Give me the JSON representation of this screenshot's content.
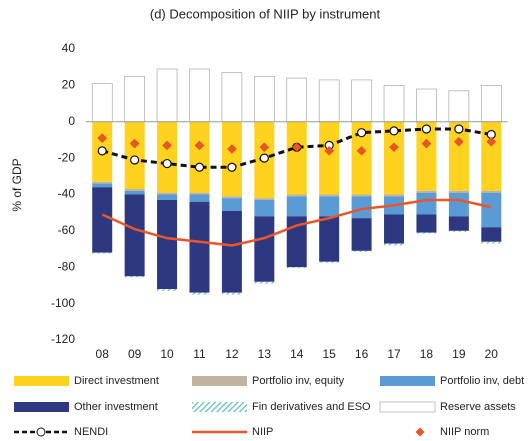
{
  "chart_data": {
    "type": "bar",
    "title": "(d) Decomposition of NIIP by instrument",
    "y_label": "% of GDP",
    "categories": [
      "08",
      "09",
      "10",
      "11",
      "12",
      "13",
      "14",
      "15",
      "16",
      "17",
      "18",
      "19",
      "20"
    ],
    "ylim": [
      -120,
      40
    ],
    "yticks": [
      -120,
      -100,
      -80,
      -60,
      -40,
      -20,
      0,
      20,
      40
    ],
    "series": [
      {
        "name": "Direct investment",
        "type": "bar",
        "color": "#ffd21f",
        "values": [
          -33,
          -37,
          -39,
          -39,
          -41,
          -42,
          -40,
          -40,
          -40,
          -40,
          -38,
          -38,
          -38
        ]
      },
      {
        "name": "Portfolio inv, equity",
        "type": "bar",
        "color": "#bfb39f",
        "values": [
          -1,
          -1,
          -1,
          -1,
          -1,
          -1,
          -1,
          -1,
          -1,
          -1,
          -1,
          -1,
          -1
        ]
      },
      {
        "name": "Portfolio inv, debt",
        "type": "bar",
        "color": "#5b9bd5",
        "values": [
          -2,
          -2,
          -3,
          -4,
          -7,
          -9,
          -11,
          -11,
          -12,
          -10,
          -12,
          -13,
          -19
        ]
      },
      {
        "name": "Other investment",
        "type": "bar",
        "color": "#2e3880",
        "values": [
          -36,
          -45,
          -49,
          -50,
          -45,
          -36,
          -28,
          -25,
          -18,
          -16,
          -10,
          -8,
          -8
        ]
      },
      {
        "name": "Fin derivatives and ESO",
        "type": "bar",
        "hatch": true,
        "color": "#5fc1ad",
        "values": [
          -0.5,
          -0.5,
          -1,
          -1,
          -1,
          -1,
          -0.5,
          -0.5,
          -0.5,
          -1,
          -0.5,
          -0.5,
          -1
        ]
      },
      {
        "name": "Reserve assets",
        "type": "bar",
        "color": "#ffffff",
        "values": [
          21,
          25,
          29,
          29,
          27,
          25,
          24,
          23,
          23,
          20,
          18,
          17,
          20
        ]
      },
      {
        "name": "NENDI",
        "type": "line",
        "dashed": true,
        "marker": "circle",
        "color": "#111111",
        "values": [
          -16,
          -21,
          -23,
          -25,
          -25,
          -20,
          -14,
          -13,
          -6,
          -5,
          -4,
          -4,
          -7
        ]
      },
      {
        "name": "NIIP",
        "type": "line",
        "color": "#e8562a",
        "values": [
          -51,
          -59,
          -64,
          -66,
          -68,
          -64,
          -57,
          -53,
          -48,
          -46,
          -43,
          -43,
          -47
        ]
      },
      {
        "name": "NIIP norm",
        "type": "scatter",
        "marker": "diamond",
        "color": "#e8562a",
        "values": [
          -9,
          -12,
          -13,
          -13,
          -15,
          -14,
          -14,
          -16,
          -16,
          -14,
          -12,
          -11,
          -11
        ]
      }
    ]
  }
}
